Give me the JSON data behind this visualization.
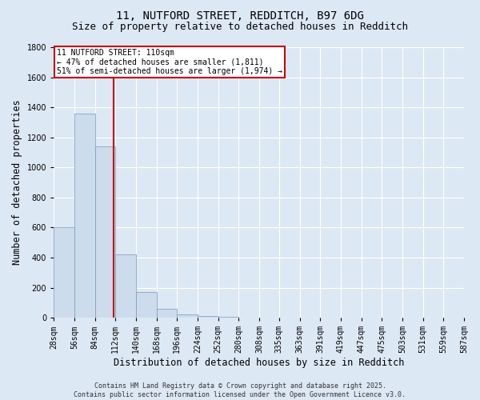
{
  "title": "11, NUTFORD STREET, REDDITCH, B97 6DG",
  "subtitle": "Size of property relative to detached houses in Redditch",
  "xlabel": "Distribution of detached houses by size in Redditch",
  "ylabel": "Number of detached properties",
  "property_size": 110,
  "annotation_line1": "11 NUTFORD STREET: 110sqm",
  "annotation_line2": "← 47% of detached houses are smaller (1,811)",
  "annotation_line3": "51% of semi-detached houses are larger (1,974) →",
  "bar_color": "#ccdcec",
  "bar_edge_color": "#7799bb",
  "vline_color": "#cc0000",
  "annotation_box_color": "#cc0000",
  "annotation_fill": "#ffffff",
  "bin_edges": [
    28,
    56,
    84,
    112,
    140,
    168,
    196,
    224,
    252,
    280,
    308,
    335,
    363,
    391,
    419,
    447,
    475,
    503,
    531,
    559,
    587
  ],
  "bin_labels": [
    "28sqm",
    "56sqm",
    "84sqm",
    "112sqm",
    "140sqm",
    "168sqm",
    "196sqm",
    "224sqm",
    "252sqm",
    "280sqm",
    "308sqm",
    "335sqm",
    "363sqm",
    "391sqm",
    "419sqm",
    "447sqm",
    "475sqm",
    "503sqm",
    "531sqm",
    "559sqm",
    "587sqm"
  ],
  "counts": [
    600,
    1360,
    1140,
    420,
    170,
    60,
    20,
    10,
    5,
    3,
    2,
    1,
    1,
    0,
    0,
    0,
    0,
    0,
    0,
    0
  ],
  "ylim": [
    0,
    1800
  ],
  "yticks": [
    0,
    200,
    400,
    600,
    800,
    1000,
    1200,
    1400,
    1600,
    1800
  ],
  "background_color": "#dce8f4",
  "plot_bg_color": "#dce8f4",
  "footer_text": "Contains HM Land Registry data © Crown copyright and database right 2025.\nContains public sector information licensed under the Open Government Licence v3.0.",
  "title_fontsize": 10,
  "subtitle_fontsize": 9,
  "tick_fontsize": 7,
  "label_fontsize": 8.5,
  "footer_fontsize": 6
}
